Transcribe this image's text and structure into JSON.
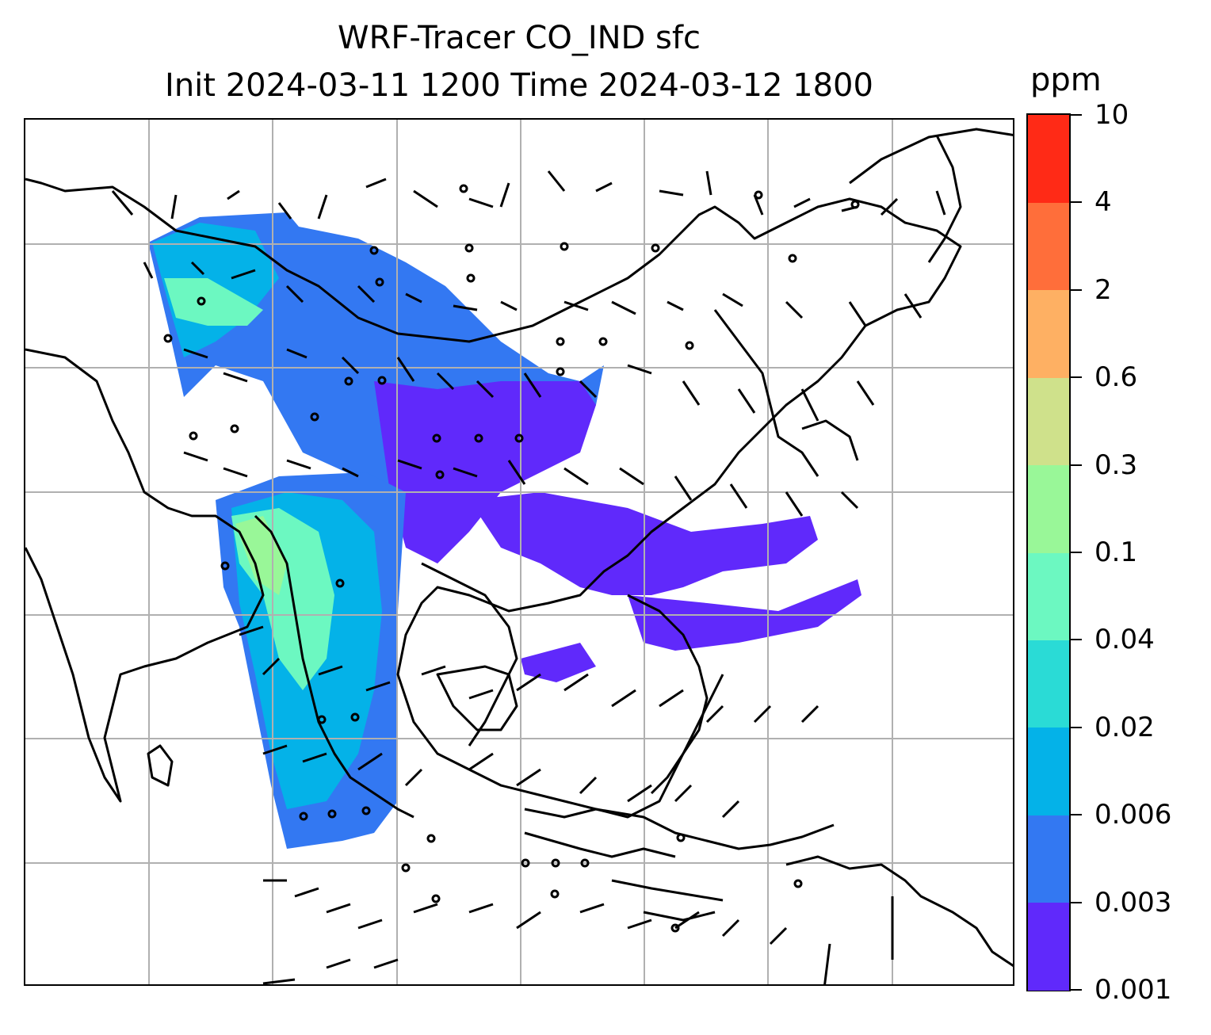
{
  "title": {
    "line1": "WRF-Tracer CO_IND sfc",
    "line2": "Init 2024-03-11 1200 Time 2024-03-12 1800"
  },
  "colorbar": {
    "unit": "ppm",
    "levels": [
      "0.001",
      "0.003",
      "0.006",
      "0.02",
      "0.04",
      "0.1",
      "0.3",
      "0.6",
      "2",
      "4",
      "10"
    ],
    "colors": [
      "#6029fb",
      "#3378f2",
      "#04b2e8",
      "#2adbd6",
      "#6cf8c1",
      "#99f798",
      "#cfe18b",
      "#feb063",
      "#ff6e3a",
      "#ff2a16"
    ]
  },
  "map": {
    "gridlines": true,
    "field": "CO_IND tracer concentration (filled)",
    "overlays": [
      "coastlines",
      "country borders",
      "wind barbs"
    ]
  }
}
